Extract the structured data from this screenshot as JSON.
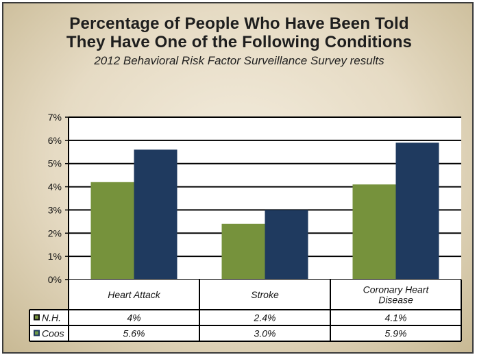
{
  "chart_data": {
    "type": "bar",
    "title_line1": "Percentage of People Who Have Been Told",
    "title_line2": "They Have One of the Following Conditions",
    "subtitle": "2012 Behavioral Risk Factor Surveillance Survey results",
    "categories": [
      "Heart Attack",
      "Stroke",
      "Coronary Heart Disease"
    ],
    "category_lines": [
      [
        "Heart Attack"
      ],
      [
        "Stroke"
      ],
      [
        "Coronary Heart",
        "Disease"
      ]
    ],
    "yticks": [
      "0%",
      "1%",
      "2%",
      "3%",
      "4%",
      "5%",
      "6%",
      "7%"
    ],
    "ylim": [
      0,
      7
    ],
    "grid": true,
    "legend": "data-table",
    "series": [
      {
        "name": "N.H.",
        "values": [
          4.2,
          2.4,
          4.1
        ],
        "table_values": [
          "4%",
          "2.4%",
          "4.1%"
        ],
        "color": "#76923c"
      },
      {
        "name": "Coos",
        "values": [
          5.6,
          3.0,
          5.9
        ],
        "table_values": [
          "5.6%",
          "3.0%",
          "5.9%"
        ],
        "color": "#1f3a5f"
      }
    ]
  }
}
